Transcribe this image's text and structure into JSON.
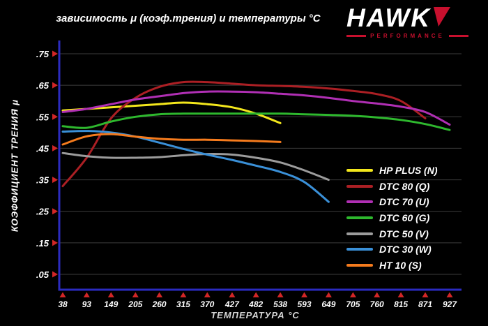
{
  "header": {
    "title": "зависимость μ (коэф.трения) и температуры °C",
    "logo": {
      "brand": "HAWK",
      "subtitle": "PERFORMANCE",
      "brand_color": "#ffffff",
      "accent_color": "#c8102e"
    }
  },
  "colors": {
    "background": "#000000",
    "axis": "#2b2bbf",
    "grid": "#3c3c3c",
    "tick_marker": "#d12626",
    "tick_text": "#ffffff",
    "xlabel_text": "#d6d6d6"
  },
  "chart_data": {
    "type": "line",
    "title": "зависимость μ (коэф.трения) и температуры °C",
    "xlabel": "ТЕМПЕРАТУРА °C",
    "ylabel": "КОЭФФИЦИЕНТ ТРЕНИЯ μ",
    "xlim": [
      38,
      927
    ],
    "ylim": [
      0.05,
      0.75
    ],
    "x_ticks": [
      38,
      93,
      149,
      205,
      260,
      315,
      370,
      427,
      482,
      538,
      593,
      649,
      705,
      760,
      815,
      871,
      927
    ],
    "y_ticks": [
      0.75,
      0.65,
      0.55,
      0.45,
      0.35,
      0.25,
      0.15,
      0.05
    ],
    "y_tick_labels": [
      ".75",
      ".65",
      ".55",
      ".45",
      ".35",
      ".25",
      ".15",
      ".05"
    ],
    "grid": "horizontal",
    "legend_position": "lower right",
    "series": [
      {
        "name": "HP PLUS (N)",
        "color": "#f3e71c",
        "x": [
          38,
          93,
          149,
          205,
          260,
          315,
          370,
          427,
          482,
          538
        ],
        "y": [
          0.57,
          0.575,
          0.58,
          0.585,
          0.59,
          0.595,
          0.59,
          0.58,
          0.56,
          0.53
        ]
      },
      {
        "name": "DTC 80 (Q)",
        "color": "#ab1f24",
        "x": [
          38,
          93,
          149,
          205,
          260,
          315,
          370,
          427,
          482,
          538,
          593,
          649,
          705,
          760,
          815,
          871
        ],
        "y": [
          0.33,
          0.42,
          0.545,
          0.61,
          0.645,
          0.66,
          0.66,
          0.655,
          0.65,
          0.648,
          0.645,
          0.64,
          0.632,
          0.622,
          0.6,
          0.545
        ]
      },
      {
        "name": "DTC 70 (U)",
        "color": "#b02fb4",
        "x": [
          38,
          93,
          149,
          205,
          260,
          315,
          370,
          427,
          482,
          538,
          593,
          649,
          705,
          760,
          815,
          871,
          927
        ],
        "y": [
          0.565,
          0.575,
          0.59,
          0.605,
          0.615,
          0.625,
          0.63,
          0.63,
          0.628,
          0.623,
          0.618,
          0.61,
          0.6,
          0.592,
          0.582,
          0.565,
          0.525
        ]
      },
      {
        "name": "DTC 60 (G)",
        "color": "#2eb82e",
        "x": [
          38,
          93,
          149,
          205,
          260,
          315,
          370,
          427,
          482,
          538,
          593,
          649,
          705,
          760,
          815,
          871,
          927
        ],
        "y": [
          0.52,
          0.515,
          0.535,
          0.55,
          0.558,
          0.56,
          0.56,
          0.56,
          0.56,
          0.56,
          0.558,
          0.556,
          0.553,
          0.548,
          0.54,
          0.527,
          0.508
        ]
      },
      {
        "name": "DTC 50 (V)",
        "color": "#9c9c9c",
        "x": [
          38,
          93,
          149,
          205,
          260,
          315,
          370,
          427,
          482,
          538,
          593,
          649
        ],
        "y": [
          0.435,
          0.425,
          0.42,
          0.42,
          0.422,
          0.428,
          0.432,
          0.43,
          0.42,
          0.405,
          0.38,
          0.35
        ]
      },
      {
        "name": "DTC 30 (W)",
        "color": "#3a90d8",
        "x": [
          38,
          93,
          149,
          205,
          260,
          315,
          370,
          427,
          482,
          538,
          593,
          649
        ],
        "y": [
          0.503,
          0.505,
          0.5,
          0.487,
          0.468,
          0.448,
          0.43,
          0.413,
          0.395,
          0.375,
          0.343,
          0.28
        ]
      },
      {
        "name": "HT 10 (S)",
        "color": "#f57b1d",
        "x": [
          38,
          93,
          149,
          205,
          260,
          315,
          370,
          427,
          482,
          538
        ],
        "y": [
          0.462,
          0.488,
          0.495,
          0.487,
          0.48,
          0.477,
          0.477,
          0.475,
          0.473,
          0.47
        ]
      }
    ]
  }
}
